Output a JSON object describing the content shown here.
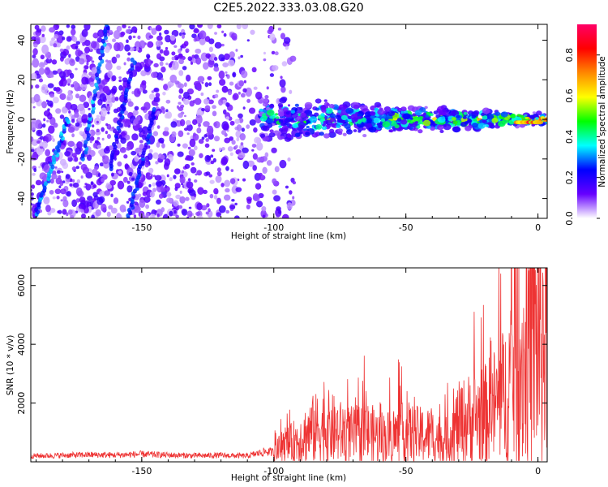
{
  "title": "C2E5.2022.333.03.08.G20",
  "chart_data": [
    {
      "type": "heatmap",
      "xlabel": "Height of straight line (km)",
      "ylabel": "Frequency (Hz)",
      "xlim": [
        -192,
        3.5
      ],
      "ylim": [
        -50,
        48
      ],
      "x_ticks": [
        "-150",
        "-100",
        "-50",
        "0"
      ],
      "y_ticks": [
        "-40",
        "-20",
        "0",
        "20",
        "40"
      ],
      "colorbar": {
        "label": "Normalized spectral amplitude",
        "range": [
          0,
          0.95
        ],
        "ticks": [
          "0.0",
          "0.2",
          "0.4",
          "0.6",
          "0.8"
        ],
        "colors": [
          "#ffffff",
          "#6600ff",
          "#0000ff",
          "#00ffff",
          "#00ff00",
          "#ffff00",
          "#ff8800",
          "#ff0000",
          "#ff0066"
        ]
      },
      "features": [
        {
          "name": "noise-background",
          "x_range": [
            -192,
            -100
          ],
          "amplitude": 0.1
        },
        {
          "name": "signal-band",
          "x_range": [
            -105,
            3
          ],
          "frequency": 0,
          "amplitude_peak": 0.9
        },
        {
          "name": "streak",
          "from": [
            -172,
            -20
          ],
          "to": [
            -163,
            48
          ],
          "amplitude": 0.25
        },
        {
          "name": "streak",
          "from": [
            -190,
            -48
          ],
          "to": [
            -178,
            0
          ],
          "amplitude": 0.25
        },
        {
          "name": "streak",
          "from": [
            -162,
            -25
          ],
          "to": [
            -153,
            30
          ],
          "amplitude": 0.2
        },
        {
          "name": "streak",
          "from": [
            -155,
            -50
          ],
          "to": [
            -145,
            5
          ],
          "amplitude": 0.2
        }
      ]
    },
    {
      "type": "line",
      "xlabel": "Height of straight line (km)",
      "ylabel": "SNR (10 * v/v)",
      "xlim": [
        -192,
        3.5
      ],
      "ylim": [
        0,
        6600
      ],
      "x_ticks": [
        "-150",
        "-100",
        "-50",
        "0"
      ],
      "y_ticks": [
        "2000",
        "4000",
        "6000"
      ],
      "color": "#ee3333",
      "series": [
        {
          "x": [
            -192,
            -180,
            -170,
            -160,
            -150,
            -140,
            -130,
            -120,
            -110,
            -103,
            -100,
            -95,
            -90,
            -85,
            -80,
            -75,
            -70,
            -65,
            -60,
            -55,
            -50,
            -45,
            -40,
            -35,
            -30,
            -25,
            -20,
            -15,
            -12,
            -10,
            -8,
            -5,
            -3,
            0,
            3.5
          ],
          "y": [
            200,
            220,
            240,
            230,
            260,
            230,
            210,
            220,
            200,
            350,
            320,
            550,
            800,
            1100,
            1200,
            1000,
            900,
            1000,
            850,
            850,
            1000,
            900,
            900,
            700,
            1300,
            1500,
            1600,
            2000,
            2300,
            3000,
            3300,
            3500,
            4000,
            4200,
            4300
          ]
        }
      ]
    }
  ]
}
